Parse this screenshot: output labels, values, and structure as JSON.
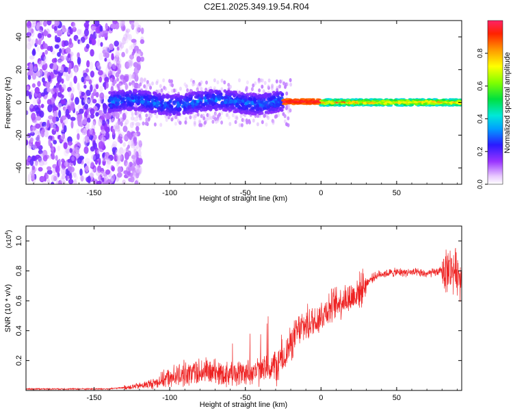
{
  "title": "C2E1.2025.349.19.54.R04",
  "chart_data": [
    {
      "type": "heatmap",
      "xlabel": "Height of straight line (km)",
      "ylabel": "Frequency (Hz)",
      "xlim": [
        -195,
        93
      ],
      "ylim": [
        -50,
        50
      ],
      "xticks": [
        -150,
        -100,
        -50,
        0,
        50
      ],
      "yticks": [
        -40,
        -20,
        0,
        20,
        40
      ],
      "colorbar": {
        "label": "Normalized spectral amplitude",
        "range": [
          0,
          1
        ],
        "ticks": [
          0.0,
          0.2,
          0.4,
          0.6,
          0.8
        ]
      },
      "ridge": {
        "description_values": "dominant frequency near 0 Hz",
        "segments": [
          {
            "x_start": -140,
            "x_end": -25,
            "center_hz": 0,
            "spread_hz": 6,
            "amplitude": [
              0.15,
              0.35
            ]
          },
          {
            "x_start": -25,
            "x_end": 0,
            "center_hz": 0.5,
            "spread_hz": 1.5,
            "amplitude": [
              0.85,
              1.0
            ]
          },
          {
            "x_start": 0,
            "x_end": 93,
            "center_hz": 0,
            "spread_hz": 2,
            "amplitude": [
              0.4,
              0.95
            ]
          }
        ],
        "noise_region": {
          "x_start": -195,
          "x_end": -118,
          "amplitude": [
            0.0,
            0.2
          ]
        }
      }
    },
    {
      "type": "line",
      "xlabel": "Height of straight line (km)",
      "ylabel": "SNR (10 * v/v)",
      "y_multiplier": "(x10",
      "y_multiplier_exp": "4",
      "y_multiplier_close": ")",
      "xlim": [
        -195,
        93
      ],
      "ylim": [
        0,
        1.1
      ],
      "xticks": [
        -150,
        -100,
        -50,
        0,
        50
      ],
      "yticks": [
        0.2,
        0.4,
        0.6,
        0.8,
        1.0
      ],
      "series": [
        {
          "name": "SNR",
          "color": "#ee2222",
          "trend_x": [
            -195,
            -140,
            -120,
            -110,
            -100,
            -80,
            -60,
            -50,
            -40,
            -30,
            -25,
            -20,
            -15,
            -10,
            -5,
            0,
            5,
            10,
            15,
            20,
            25,
            30,
            35,
            40,
            50,
            60,
            70,
            75,
            80,
            85,
            90,
            93
          ],
          "trend_y": [
            0.01,
            0.01,
            0.03,
            0.05,
            0.09,
            0.13,
            0.11,
            0.12,
            0.13,
            0.16,
            0.22,
            0.31,
            0.4,
            0.44,
            0.46,
            0.5,
            0.55,
            0.58,
            0.61,
            0.62,
            0.66,
            0.72,
            0.76,
            0.78,
            0.79,
            0.79,
            0.78,
            0.79,
            0.8,
            0.81,
            0.8,
            0.75
          ]
        }
      ]
    }
  ],
  "colors": {
    "heatmap_bg": "#ffffff",
    "line": "#ee2222",
    "axis": "#000000"
  }
}
